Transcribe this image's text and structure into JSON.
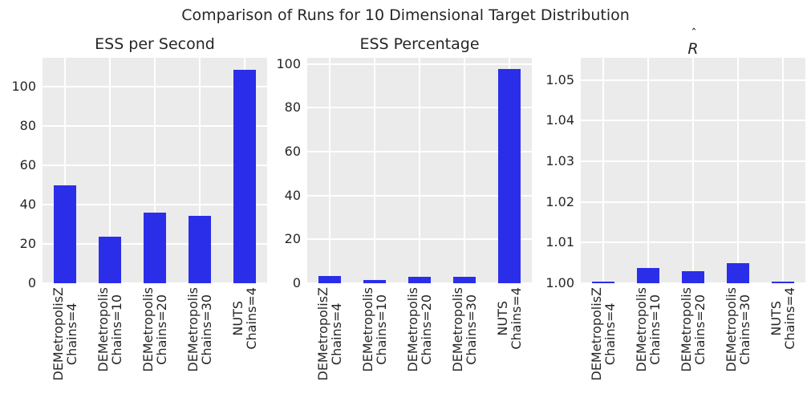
{
  "figure": {
    "suptitle": "Comparison of Runs for 10 Dimensional Target Distribution",
    "background": "#ffffff",
    "axes_background": "#ebebeb",
    "grid_color": "#ffffff",
    "bar_color": "#2b2ee8",
    "text_color": "#262626"
  },
  "chart_data": [
    {
      "type": "bar",
      "title": "ESS per Second",
      "categories": [
        [
          "DEMetropolisZ",
          "Chains=4"
        ],
        [
          "DEMetropolis",
          "Chains=10"
        ],
        [
          "DEMetropolis",
          "Chains=20"
        ],
        [
          "DEMetropolis",
          "Chains=30"
        ],
        [
          "NUTS",
          "Chains=4"
        ]
      ],
      "values": [
        49.8,
        23.7,
        35.9,
        34.2,
        108.5
      ],
      "ylim": [
        0,
        114.5
      ],
      "yticks": [
        0,
        20,
        40,
        60,
        80,
        100
      ],
      "ytick_labels": [
        "0",
        "20",
        "40",
        "60",
        "80",
        "100"
      ],
      "xlabel": "",
      "ylabel": "",
      "grid": true,
      "legend": "none",
      "bar_width_fraction": 0.5
    },
    {
      "type": "bar",
      "title": "ESS Percentage",
      "categories": [
        [
          "DEMetropolisZ",
          "Chains=4"
        ],
        [
          "DEMetropolis",
          "Chains=10"
        ],
        [
          "DEMetropolis",
          "Chains=20"
        ],
        [
          "DEMetropolis",
          "Chains=30"
        ],
        [
          "NUTS",
          "Chains=4"
        ]
      ],
      "values": [
        3.2,
        1.6,
        2.9,
        2.8,
        97.6
      ],
      "ylim": [
        0,
        102.8
      ],
      "yticks": [
        0,
        20,
        40,
        60,
        80,
        100
      ],
      "ytick_labels": [
        "0",
        "20",
        "40",
        "60",
        "80",
        "100"
      ],
      "xlabel": "",
      "ylabel": "",
      "grid": true,
      "legend": "none",
      "bar_width_fraction": 0.5
    },
    {
      "type": "bar",
      "title": "R̂",
      "title_parts": {
        "base": "R",
        "accent": "ˆ"
      },
      "categories": [
        [
          "DEMetropolisZ",
          "Chains=4"
        ],
        [
          "DEMetropolis",
          "Chains=10"
        ],
        [
          "DEMetropolis",
          "Chains=20"
        ],
        [
          "DEMetropolis",
          "Chains=30"
        ],
        [
          "NUTS",
          "Chains=4"
        ]
      ],
      "values": [
        1.0004,
        1.0038,
        1.003,
        1.005,
        1.0004
      ],
      "ylim": [
        1.0,
        1.0555
      ],
      "yticks": [
        1.0,
        1.01,
        1.02,
        1.03,
        1.04,
        1.05
      ],
      "ytick_labels": [
        "1.00",
        "1.01",
        "1.02",
        "1.03",
        "1.04",
        "1.05"
      ],
      "xlabel": "",
      "ylabel": "",
      "grid": true,
      "legend": "none",
      "bar_width_fraction": 0.5
    }
  ]
}
